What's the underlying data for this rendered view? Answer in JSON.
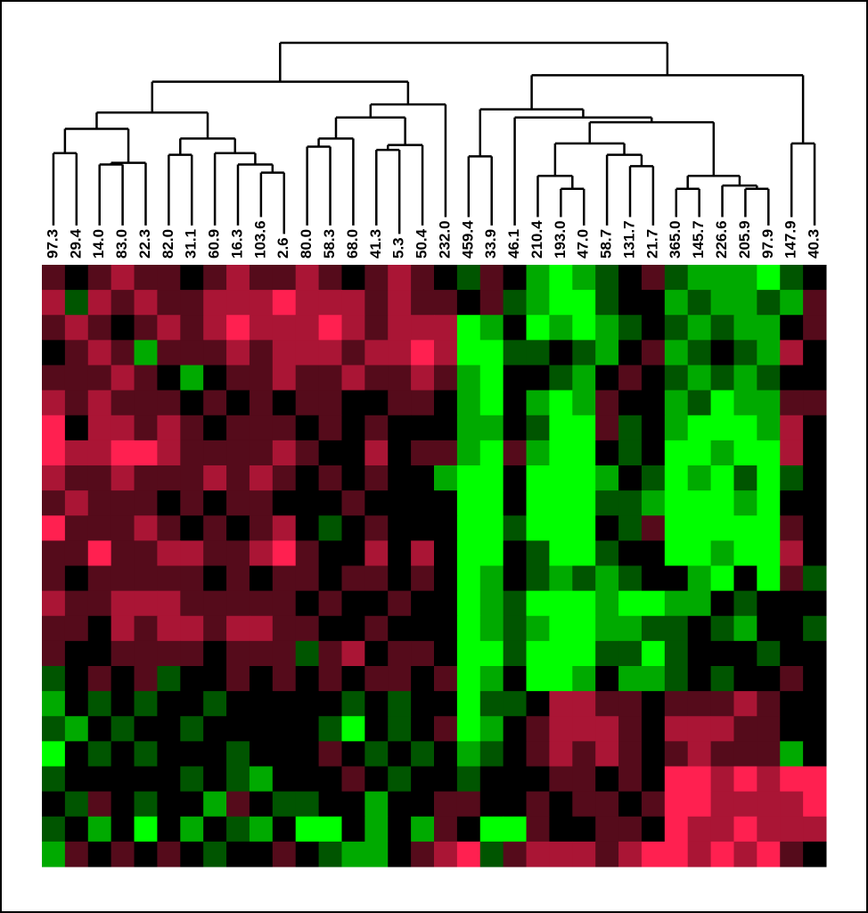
{
  "chart_data": {
    "type": "heatmap",
    "categories": [
      "97.3",
      "29.4",
      "14.0",
      "83.0",
      "22.3",
      "82.0",
      "31.1",
      "60.9",
      "16.3",
      "103.6",
      "2.6",
      "80.0",
      "58.3",
      "68.0",
      "41.3",
      "5.3",
      "50.4",
      "232.0",
      "459.4",
      "33.9",
      "46.1",
      "210.4",
      "193.0",
      "47.0",
      "58.7",
      "131.7",
      "21.7",
      "365.0",
      "145.7",
      "226.6",
      "205.9",
      "97.9",
      "147.9",
      "40.3"
    ],
    "zlim": [
      -3,
      3
    ],
    "colors": {
      "low": "#00ff00",
      "mid": "#000000",
      "high": "#ff2050"
    },
    "dendrogram": [
      [
        [
          [
            [
              0,
              1,
              32
            ],
            [
              [
                2,
                3,
                25
              ],
              4,
              26
            ],
            47
          ],
          [
            [
              5,
              6,
              31
            ],
            [
              7,
              [
                8,
                [
                  9,
                  10,
                  20
                ],
                25
              ],
              32
            ],
            41
          ],
          57
        ],
        [
          [
            [
              [
                11,
                12,
                36
              ],
              13,
              41
            ],
            [
              [
                14,
                15,
                34
              ],
              16,
              37
            ],
            54
          ],
          17,
          62
        ],
        76
      ],
      [
        [
          [
            18,
            19,
            30
          ],
          [
            20,
            [
              [
                [
                  21,
                  [
                    22,
                    23,
                    10
                  ],
                  18
                ],
                [
                  24,
                  [
                    25,
                    26,
                    24
                  ],
                  31
                ],
                38
              ],
              [
                [
                  27,
                  28,
                  10
                ],
                [
                  29,
                  [
                    30,
                    31,
                    10
                  ],
                  12
                ],
                18
              ],
              51
            ],
            54
          ],
          59
        ],
        [
          32,
          33,
          38
        ],
        80
      ],
      100
    ],
    "values": [
      [
        1,
        0,
        1,
        2,
        1,
        1,
        0,
        1,
        2,
        1,
        1,
        2,
        1,
        0,
        1,
        2,
        1,
        0,
        -1,
        1,
        0,
        -2,
        -3,
        -2,
        -1,
        0,
        1,
        -1,
        -2,
        -2,
        -2,
        -3,
        -1,
        0
      ],
      [
        2,
        -1,
        2,
        1,
        2,
        1,
        1,
        2,
        2,
        2,
        3,
        2,
        2,
        2,
        1,
        2,
        1,
        1,
        0,
        1,
        -1,
        -2,
        -3,
        -3,
        -1,
        0,
        0,
        -2,
        -1,
        -2,
        -2,
        -1,
        -2,
        1
      ],
      [
        1,
        2,
        1,
        0,
        1,
        2,
        1,
        2,
        3,
        2,
        2,
        2,
        3,
        2,
        1,
        2,
        2,
        2,
        -3,
        -2,
        0,
        -3,
        -2,
        -3,
        -2,
        -1,
        0,
        -1,
        -2,
        -1,
        -2,
        -2,
        0,
        1
      ],
      [
        0,
        1,
        2,
        1,
        -2,
        1,
        1,
        1,
        2,
        1,
        2,
        2,
        2,
        1,
        2,
        2,
        3,
        2,
        -3,
        -3,
        -1,
        -1,
        0,
        -1,
        -2,
        0,
        1,
        -2,
        -1,
        0,
        -1,
        -2,
        2,
        0
      ],
      [
        1,
        1,
        1,
        2,
        1,
        0,
        -2,
        0,
        1,
        1,
        2,
        1,
        1,
        2,
        1,
        1,
        2,
        1,
        -2,
        -3,
        0,
        0,
        -1,
        -2,
        0,
        1,
        0,
        -1,
        -2,
        -1,
        -2,
        -1,
        0,
        0
      ],
      [
        2,
        1,
        2,
        1,
        1,
        1,
        0,
        1,
        0,
        1,
        0,
        1,
        1,
        0,
        0,
        1,
        1,
        0,
        -2,
        -3,
        0,
        -2,
        -3,
        -2,
        1,
        0,
        0,
        -2,
        -1,
        -3,
        -2,
        -2,
        1,
        1
      ],
      [
        3,
        0,
        2,
        2,
        1,
        2,
        1,
        0,
        1,
        1,
        1,
        0,
        1,
        0,
        1,
        0,
        0,
        0,
        -2,
        -2,
        0,
        -1,
        -3,
        -3,
        1,
        -1,
        0,
        -2,
        -3,
        -3,
        -3,
        -2,
        2,
        0
      ],
      [
        3,
        2,
        2,
        3,
        3,
        2,
        1,
        1,
        1,
        1,
        2,
        1,
        0,
        0,
        2,
        0,
        1,
        1,
        -2,
        -3,
        1,
        -2,
        -3,
        -3,
        0,
        -1,
        0,
        -3,
        -3,
        -2,
        -3,
        -3,
        2,
        0
      ],
      [
        2,
        1,
        1,
        2,
        1,
        1,
        1,
        2,
        1,
        2,
        1,
        0,
        1,
        0,
        1,
        0,
        0,
        -2,
        -3,
        -3,
        0,
        -3,
        -3,
        -3,
        -2,
        0,
        -1,
        -3,
        -2,
        -3,
        -1,
        -3,
        -1,
        0
      ],
      [
        1,
        2,
        1,
        1,
        1,
        0,
        1,
        0,
        1,
        1,
        0,
        0,
        0,
        1,
        0,
        0,
        0,
        0,
        -3,
        -3,
        0,
        -3,
        -3,
        -3,
        -1,
        -1,
        -2,
        -3,
        -3,
        -3,
        -2,
        -3,
        0,
        0
      ],
      [
        3,
        1,
        1,
        1,
        2,
        1,
        0,
        1,
        0,
        1,
        2,
        0,
        -1,
        0,
        1,
        0,
        0,
        0,
        -3,
        -3,
        -1,
        -3,
        -3,
        -3,
        0,
        -1,
        1,
        -3,
        -3,
        -3,
        -3,
        -3,
        1,
        0
      ],
      [
        1,
        1,
        3,
        1,
        1,
        2,
        2,
        1,
        1,
        2,
        3,
        1,
        0,
        0,
        2,
        0,
        2,
        0,
        -3,
        -3,
        0,
        -1,
        -3,
        -3,
        -1,
        0,
        0,
        -3,
        -3,
        -2,
        -3,
        -3,
        2,
        0
      ],
      [
        1,
        0,
        1,
        1,
        1,
        1,
        1,
        0,
        1,
        0,
        1,
        1,
        0,
        1,
        1,
        0,
        1,
        0,
        -3,
        -2,
        0,
        -1,
        -2,
        -1,
        -2,
        -1,
        0,
        0,
        -2,
        -3,
        0,
        -3,
        1,
        -1
      ],
      [
        2,
        1,
        1,
        2,
        2,
        2,
        1,
        1,
        1,
        1,
        1,
        0,
        1,
        0,
        0,
        1,
        0,
        0,
        -3,
        -2,
        -1,
        -3,
        -3,
        -3,
        -2,
        -3,
        -3,
        -2,
        -2,
        0,
        -1,
        0,
        0,
        0
      ],
      [
        1,
        1,
        0,
        2,
        1,
        2,
        2,
        1,
        2,
        2,
        1,
        1,
        0,
        0,
        1,
        0,
        0,
        0,
        -3,
        -2,
        -1,
        -2,
        -3,
        -3,
        -2,
        -2,
        -1,
        -1,
        0,
        -1,
        -2,
        0,
        0,
        -1
      ],
      [
        1,
        0,
        0,
        1,
        1,
        1,
        1,
        0,
        1,
        1,
        1,
        -1,
        1,
        2,
        0,
        1,
        1,
        0,
        -3,
        -3,
        -1,
        -3,
        -3,
        -3,
        -1,
        -1,
        -3,
        -1,
        0,
        0,
        0,
        -1,
        0,
        0
      ],
      [
        -1,
        0,
        1,
        0,
        1,
        -1,
        0,
        0,
        1,
        0,
        1,
        0,
        1,
        0,
        1,
        1,
        0,
        1,
        -3,
        -2,
        0,
        -3,
        -3,
        -2,
        0,
        -2,
        -2,
        -1,
        0,
        -1,
        0,
        0,
        1,
        0
      ],
      [
        -2,
        0,
        -1,
        0,
        -1,
        0,
        0,
        -1,
        0,
        0,
        0,
        0,
        0,
        -1,
        0,
        -1,
        0,
        0,
        -3,
        -1,
        -1,
        0,
        2,
        2,
        1,
        1,
        0,
        1,
        1,
        1,
        2,
        1,
        0,
        0
      ],
      [
        -1,
        -2,
        0,
        -1,
        0,
        0,
        -1,
        0,
        0,
        0,
        0,
        0,
        -1,
        -3,
        0,
        -1,
        0,
        1,
        -3,
        -2,
        0,
        1,
        2,
        2,
        2,
        1,
        0,
        2,
        2,
        2,
        1,
        1,
        0,
        0
      ],
      [
        -3,
        0,
        -1,
        0,
        -1,
        0,
        0,
        0,
        -1,
        0,
        0,
        0,
        1,
        0,
        -1,
        0,
        -1,
        0,
        -2,
        -1,
        0,
        1,
        2,
        1,
        2,
        1,
        0,
        1,
        2,
        1,
        1,
        1,
        -2,
        0
      ],
      [
        -1,
        0,
        0,
        0,
        0,
        0,
        -1,
        0,
        -1,
        -2,
        0,
        0,
        0,
        1,
        0,
        -1,
        0,
        0,
        -1,
        0,
        0,
        0,
        1,
        1,
        0,
        1,
        0,
        3,
        3,
        2,
        3,
        2,
        3,
        3
      ],
      [
        0,
        -1,
        1,
        0,
        -1,
        0,
        0,
        -2,
        1,
        0,
        -1,
        -1,
        0,
        0,
        -2,
        0,
        0,
        1,
        1,
        0,
        0,
        1,
        0,
        1,
        1,
        0,
        1,
        3,
        3,
        2,
        2,
        2,
        2,
        3
      ],
      [
        -1,
        0,
        -2,
        0,
        -3,
        0,
        -2,
        0,
        -1,
        -2,
        0,
        -3,
        -3,
        0,
        -2,
        0,
        -2,
        1,
        0,
        -3,
        -3,
        1,
        0,
        0,
        1,
        1,
        0,
        3,
        2,
        2,
        3,
        2,
        2,
        2
      ],
      [
        -2,
        1,
        0,
        1,
        0,
        1,
        0,
        -1,
        0,
        0,
        1,
        0,
        -1,
        -2,
        -2,
        0,
        1,
        2,
        3,
        -1,
        1,
        2,
        2,
        2,
        1,
        2,
        3,
        3,
        2,
        3,
        2,
        3,
        1,
        0
      ]
    ]
  }
}
